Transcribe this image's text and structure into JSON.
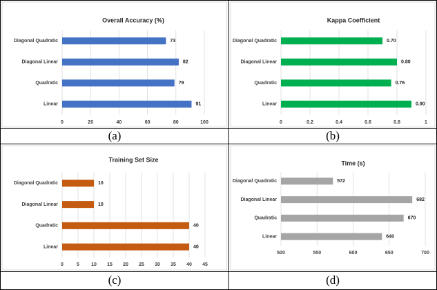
{
  "chart_data": [
    {
      "type": "bar",
      "orientation": "horizontal",
      "title": "Overall Accuracy (%)",
      "caption": "(a)",
      "categories": [
        "Diagonal Quadratic",
        "Diagonal Linear",
        "Quadratic",
        "Linear"
      ],
      "values": [
        73,
        82,
        79,
        91
      ],
      "color": "#4472c4",
      "xlim": [
        0,
        100
      ],
      "xticks": [
        0,
        20,
        40,
        60,
        80,
        100
      ],
      "grid": true
    },
    {
      "type": "bar",
      "orientation": "horizontal",
      "title": "Kappa Coefficient",
      "caption": "(b)",
      "categories": [
        "Diagonal Quadratic",
        "Diagonal Linear",
        "Quadratic",
        "Linear"
      ],
      "values": [
        0.7,
        0.8,
        0.76,
        0.9
      ],
      "value_labels": [
        "0.70",
        "0.80",
        "0.76",
        "0.90"
      ],
      "color": "#00b050",
      "xlim": [
        0,
        1
      ],
      "xticks": [
        0,
        0.2,
        0.4,
        0.6,
        0.8,
        1
      ],
      "grid": true
    },
    {
      "type": "bar",
      "orientation": "horizontal",
      "title": "Training Set Size",
      "caption": "(c)",
      "categories": [
        "Diagonal Quadratic",
        "Diagonal Linear",
        "Quadratic",
        "Linear"
      ],
      "values": [
        10,
        10,
        40,
        40
      ],
      "color": "#c55a11",
      "xlim": [
        0,
        45
      ],
      "xticks": [
        0,
        5,
        10,
        15,
        20,
        25,
        30,
        35,
        40,
        45
      ],
      "grid": true
    },
    {
      "type": "bar",
      "orientation": "horizontal",
      "title": "Time (s)",
      "caption": "(d)",
      "categories": [
        "Diagonal Quadratic",
        "Diagonal Linear",
        "Quadratic",
        "Linear"
      ],
      "values": [
        572,
        682,
        670,
        640
      ],
      "color": "#a5a5a5",
      "xlim": [
        500,
        700
      ],
      "xticks": [
        500,
        550,
        600,
        650,
        700
      ],
      "grid": true
    }
  ]
}
